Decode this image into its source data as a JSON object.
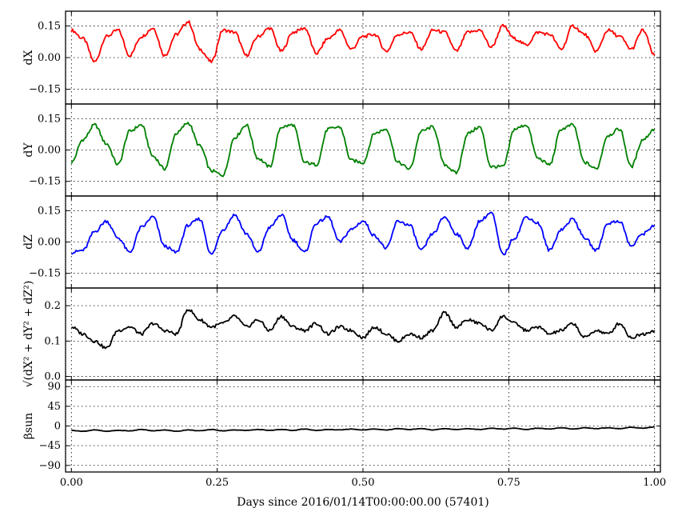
{
  "chart_data": {
    "type": "line",
    "xlabel": "Days since 2016/01/14T00:00:00.00 (57401)",
    "xlim": [
      -0.01,
      1.01
    ],
    "x_ticks": [
      "0.00",
      "0.25",
      "0.50",
      "0.75",
      "1.00"
    ],
    "x_tick_values": [
      0,
      0.25,
      0.5,
      0.75,
      1.0
    ],
    "grid": true,
    "panels": [
      {
        "ylabel": "dX",
        "ylim": [
          -0.22,
          0.22
        ],
        "y_ticks": [
          "0.15",
          "0.00",
          "−0.15"
        ],
        "y_tick_values": [
          0.15,
          0,
          -0.15
        ],
        "color": "#ff0000",
        "x": [
          0.0,
          0.02,
          0.04,
          0.06,
          0.08,
          0.1,
          0.12,
          0.14,
          0.16,
          0.18,
          0.2,
          0.22,
          0.24,
          0.26,
          0.28,
          0.3,
          0.32,
          0.34,
          0.36,
          0.38,
          0.4,
          0.42,
          0.44,
          0.46,
          0.48,
          0.5,
          0.52,
          0.54,
          0.56,
          0.58,
          0.6,
          0.62,
          0.64,
          0.66,
          0.68,
          0.7,
          0.72,
          0.74,
          0.76,
          0.78,
          0.8,
          0.82,
          0.84,
          0.86,
          0.88,
          0.9,
          0.92,
          0.94,
          0.96,
          0.98,
          1.0
        ],
        "values": [
          0.13,
          0.09,
          -0.02,
          0.1,
          0.13,
          0.01,
          0.1,
          0.14,
          0.01,
          0.11,
          0.17,
          0.04,
          -0.02,
          0.13,
          0.12,
          0.01,
          0.1,
          0.14,
          0.03,
          0.12,
          0.14,
          0.02,
          0.09,
          0.13,
          0.04,
          0.1,
          0.11,
          0.03,
          0.11,
          0.12,
          0.04,
          0.13,
          0.12,
          0.03,
          0.12,
          0.13,
          0.05,
          0.15,
          0.09,
          0.06,
          0.12,
          0.11,
          0.04,
          0.15,
          0.11,
          0.03,
          0.13,
          0.1,
          0.04,
          0.13,
          0.01
        ]
      },
      {
        "ylabel": "dY",
        "ylim": [
          -0.22,
          0.22
        ],
        "y_ticks": [
          "0.15",
          "0.00",
          "−0.15"
        ],
        "y_tick_values": [
          0.15,
          0,
          -0.15
        ],
        "color": "#008000",
        "x": [
          0.0,
          0.02,
          0.04,
          0.06,
          0.08,
          0.1,
          0.12,
          0.14,
          0.16,
          0.18,
          0.2,
          0.22,
          0.24,
          0.26,
          0.28,
          0.3,
          0.32,
          0.34,
          0.36,
          0.38,
          0.4,
          0.42,
          0.44,
          0.46,
          0.48,
          0.5,
          0.52,
          0.54,
          0.56,
          0.58,
          0.6,
          0.62,
          0.64,
          0.66,
          0.68,
          0.7,
          0.72,
          0.74,
          0.76,
          0.78,
          0.8,
          0.82,
          0.84,
          0.86,
          0.88,
          0.9,
          0.92,
          0.94,
          0.96,
          0.98,
          1.0
        ],
        "values": [
          -0.06,
          0.05,
          0.12,
          0.03,
          -0.07,
          0.09,
          0.12,
          -0.03,
          -0.09,
          0.08,
          0.13,
          0.02,
          -0.1,
          -0.12,
          0.06,
          0.12,
          -0.04,
          -0.08,
          0.11,
          0.12,
          -0.06,
          -0.07,
          0.1,
          0.11,
          -0.05,
          -0.06,
          0.08,
          0.1,
          -0.06,
          -0.09,
          0.09,
          0.11,
          -0.07,
          -0.11,
          0.08,
          0.11,
          -0.08,
          -0.08,
          0.1,
          0.12,
          -0.04,
          -0.07,
          0.1,
          0.12,
          -0.06,
          -0.09,
          0.07,
          0.1,
          -0.08,
          0.05,
          0.1
        ]
      },
      {
        "ylabel": "dZ",
        "ylim": [
          -0.22,
          0.22
        ],
        "y_ticks": [
          "0.15",
          "0.00",
          "−0.15"
        ],
        "y_tick_values": [
          0.15,
          0,
          -0.15
        ],
        "color": "#0000ff",
        "x": [
          0.0,
          0.02,
          0.04,
          0.06,
          0.08,
          0.1,
          0.12,
          0.14,
          0.16,
          0.18,
          0.2,
          0.22,
          0.24,
          0.26,
          0.28,
          0.3,
          0.32,
          0.34,
          0.36,
          0.38,
          0.4,
          0.42,
          0.44,
          0.46,
          0.48,
          0.5,
          0.52,
          0.54,
          0.56,
          0.58,
          0.6,
          0.62,
          0.64,
          0.66,
          0.68,
          0.7,
          0.72,
          0.74,
          0.76,
          0.78,
          0.8,
          0.82,
          0.84,
          0.86,
          0.88,
          0.9,
          0.92,
          0.94,
          0.96,
          0.98,
          1.0
        ],
        "values": [
          -0.05,
          -0.04,
          0.05,
          0.1,
          0.02,
          -0.05,
          0.07,
          0.12,
          -0.02,
          -0.05,
          0.08,
          0.11,
          -0.06,
          0.06,
          0.13,
          0.04,
          -0.05,
          0.07,
          0.13,
          0.01,
          -0.05,
          0.09,
          0.12,
          0.0,
          0.06,
          0.1,
          0.03,
          -0.03,
          0.1,
          0.08,
          -0.04,
          0.04,
          0.12,
          0.04,
          -0.03,
          0.1,
          0.14,
          -0.06,
          0.02,
          0.12,
          0.09,
          -0.04,
          0.06,
          0.11,
          0.02,
          -0.04,
          0.09,
          0.1,
          -0.02,
          0.04,
          0.08
        ]
      },
      {
        "ylabel": "√(dX² + dY² + dZ²)",
        "ylim": [
          -0.01,
          0.25
        ],
        "y_ticks": [
          "0.2",
          "0.1",
          "0.0"
        ],
        "y_tick_values": [
          0.2,
          0.1,
          0.0
        ],
        "color": "#000000",
        "x": [
          0.0,
          0.02,
          0.04,
          0.06,
          0.08,
          0.1,
          0.12,
          0.14,
          0.16,
          0.18,
          0.2,
          0.22,
          0.24,
          0.26,
          0.28,
          0.3,
          0.32,
          0.34,
          0.36,
          0.38,
          0.4,
          0.42,
          0.44,
          0.46,
          0.48,
          0.5,
          0.52,
          0.54,
          0.56,
          0.58,
          0.6,
          0.62,
          0.64,
          0.66,
          0.68,
          0.7,
          0.72,
          0.74,
          0.76,
          0.78,
          0.8,
          0.82,
          0.84,
          0.86,
          0.88,
          0.9,
          0.92,
          0.94,
          0.96,
          0.98,
          1.0
        ],
        "values": [
          0.14,
          0.12,
          0.1,
          0.08,
          0.13,
          0.14,
          0.12,
          0.15,
          0.13,
          0.12,
          0.19,
          0.16,
          0.14,
          0.15,
          0.17,
          0.14,
          0.16,
          0.13,
          0.17,
          0.14,
          0.13,
          0.15,
          0.12,
          0.14,
          0.13,
          0.11,
          0.14,
          0.12,
          0.1,
          0.12,
          0.11,
          0.13,
          0.18,
          0.14,
          0.16,
          0.15,
          0.13,
          0.17,
          0.15,
          0.13,
          0.14,
          0.12,
          0.13,
          0.15,
          0.11,
          0.13,
          0.12,
          0.15,
          0.11,
          0.12,
          0.13
        ]
      },
      {
        "ylabel": "βsun",
        "ylim": [
          -105,
          105
        ],
        "y_ticks": [
          "90",
          "45",
          "0",
          "−45",
          "−90"
        ],
        "y_tick_values": [
          90,
          45,
          0,
          -45,
          -90
        ],
        "color": "#000000",
        "x": [
          0.0,
          0.02,
          0.04,
          0.06,
          0.08,
          0.1,
          0.12,
          0.14,
          0.16,
          0.18,
          0.2,
          0.22,
          0.24,
          0.26,
          0.28,
          0.3,
          0.32,
          0.34,
          0.36,
          0.38,
          0.4,
          0.42,
          0.44,
          0.46,
          0.48,
          0.5,
          0.52,
          0.54,
          0.56,
          0.58,
          0.6,
          0.62,
          0.64,
          0.66,
          0.68,
          0.7,
          0.72,
          0.74,
          0.76,
          0.78,
          0.8,
          0.82,
          0.84,
          0.86,
          0.88,
          0.9,
          0.92,
          0.94,
          0.96,
          0.98,
          1.0
        ],
        "values": [
          -10,
          -12,
          -9,
          -12,
          -10,
          -11,
          -8,
          -11,
          -9,
          -12,
          -9,
          -11,
          -8,
          -11,
          -9,
          -10,
          -8,
          -10,
          -8,
          -10,
          -7,
          -10,
          -8,
          -9,
          -7,
          -9,
          -7,
          -9,
          -6,
          -8,
          -6,
          -9,
          -6,
          -8,
          -6,
          -8,
          -5,
          -7,
          -5,
          -8,
          -5,
          -7,
          -4,
          -7,
          -4,
          -6,
          -4,
          -6,
          -3,
          -5,
          -2
        ]
      }
    ]
  }
}
